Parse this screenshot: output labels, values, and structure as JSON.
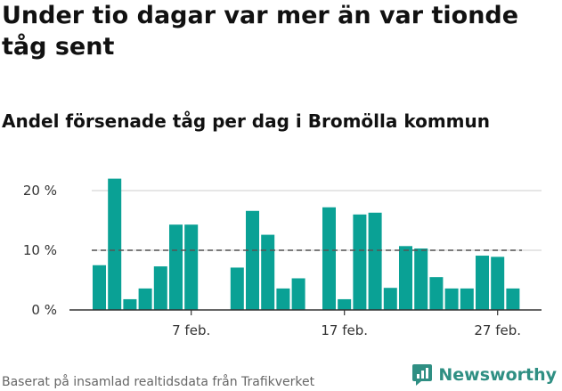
{
  "title": "Under tio dagar var mer än var tionde tåg sent",
  "subtitle": "Andel försenade tåg per dag i Bromölla kommun",
  "source": "Baserat på insamlad realtidsdata från Trafikverket",
  "brand": {
    "name": "Newsworthy",
    "icon": "newsworthy-logo-icon"
  },
  "colors": {
    "bar": "#0aa195",
    "reference_line": "#555555",
    "grid": "#dddddd",
    "brand": "#2f8f83"
  },
  "chart_data": {
    "type": "bar",
    "x": [
      "1 feb.",
      "2 feb.",
      "3 feb.",
      "4 feb.",
      "5 feb.",
      "6 feb.",
      "7 feb.",
      "8 feb.",
      "9 feb.",
      "10 feb.",
      "11 feb.",
      "12 feb.",
      "13 feb.",
      "14 feb.",
      "15 feb.",
      "16 feb.",
      "17 feb.",
      "18 feb.",
      "19 feb.",
      "20 feb.",
      "21 feb.",
      "22 feb.",
      "23 feb.",
      "24 feb.",
      "25 feb.",
      "26 feb.",
      "27 feb.",
      "28 feb."
    ],
    "values": [
      7.5,
      22,
      1.8,
      3.6,
      7.3,
      14.3,
      14.3,
      null,
      null,
      7.1,
      16.6,
      12.6,
      3.6,
      5.3,
      null,
      17.2,
      1.8,
      16.0,
      16.3,
      3.7,
      10.7,
      10.3,
      5.5,
      3.6,
      3.6,
      9.1,
      8.9,
      3.6
    ],
    "x_tick_labels": [
      {
        "index": 6,
        "label": "7 feb."
      },
      {
        "index": 16,
        "label": "17 feb."
      },
      {
        "index": 26,
        "label": "27 feb."
      }
    ],
    "y_ticks": [
      {
        "value": 0,
        "label": "0 %"
      },
      {
        "value": 10,
        "label": "10 %"
      },
      {
        "value": 20,
        "label": "20 %"
      }
    ],
    "ylim": [
      0,
      23
    ],
    "reference_line": 10,
    "grid": true,
    "legend": false
  }
}
